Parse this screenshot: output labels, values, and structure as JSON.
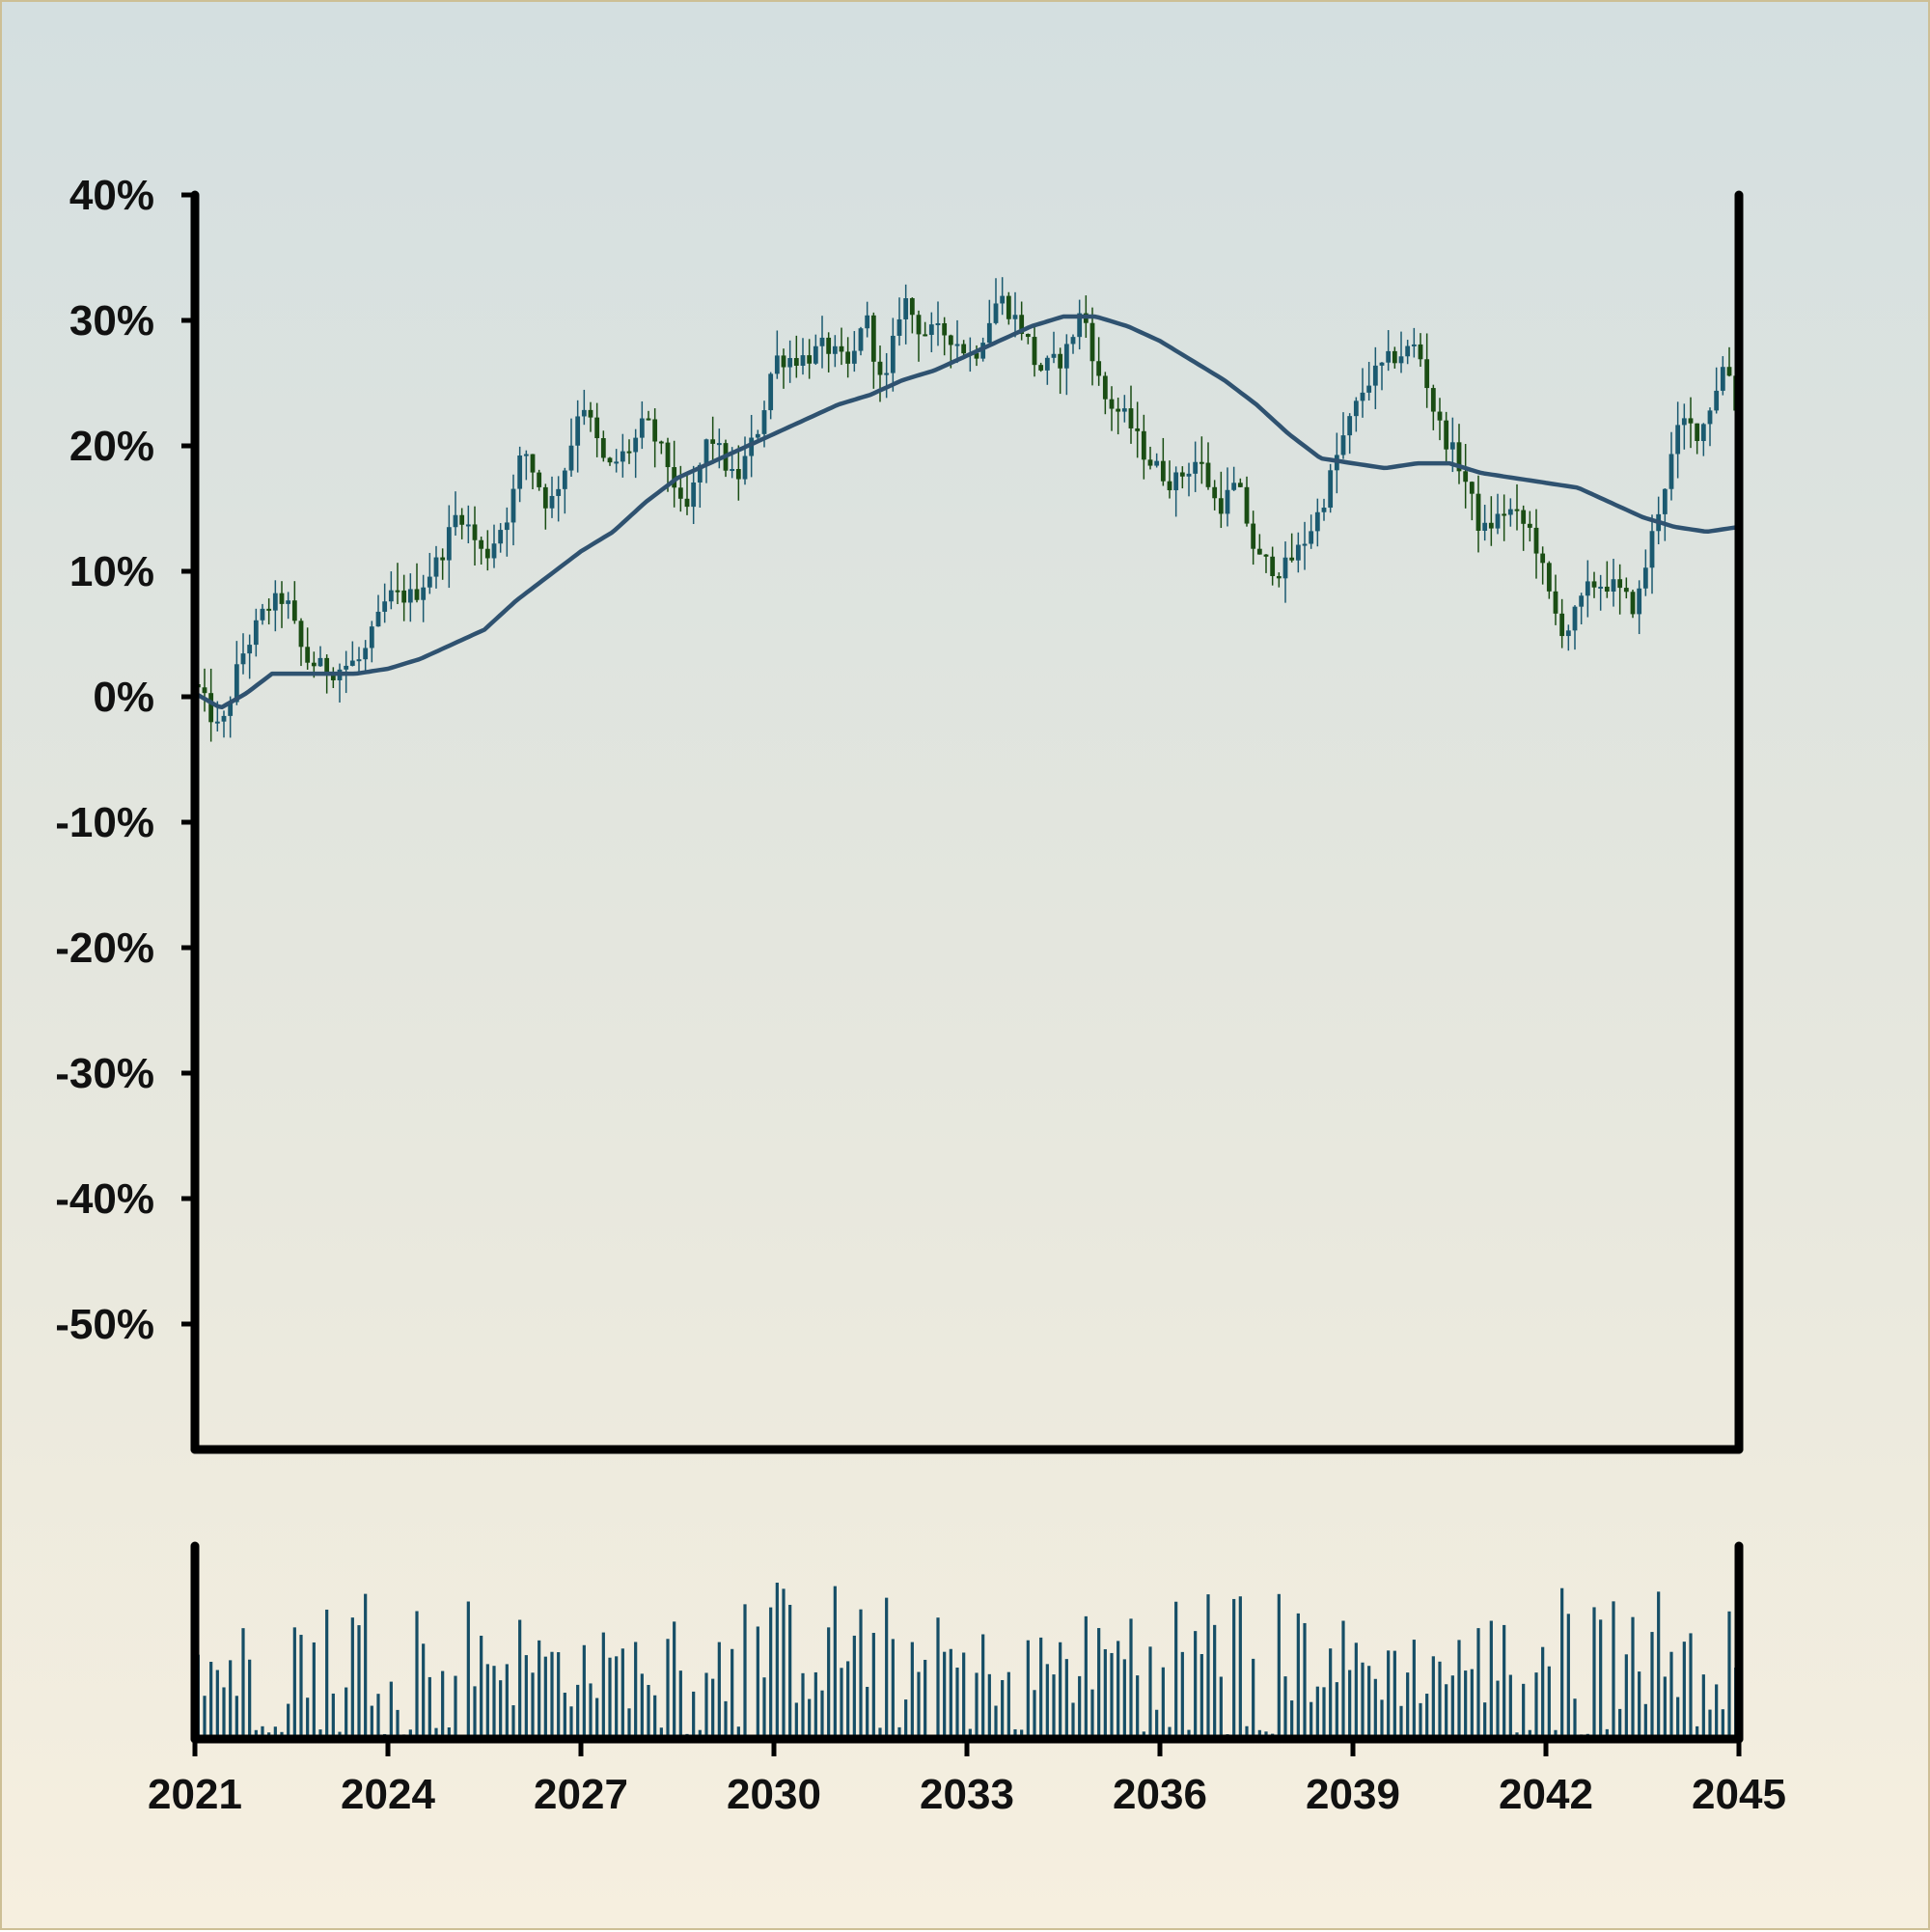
{
  "chart_data": {
    "type": "candlestick",
    "title": "",
    "xlabel": "",
    "ylabel": "",
    "x_ticks": [
      "2021",
      "2024",
      "2027",
      "2030",
      "2033",
      "2036",
      "2039",
      "2042",
      "2045"
    ],
    "x_range": [
      2021,
      2045
    ],
    "y_ticks": [
      "40%",
      "30%",
      "20%",
      "10%",
      "0%",
      "-10%",
      "-20%",
      "-30%",
      "-40%",
      "-50%"
    ],
    "ylim": [
      -60,
      40
    ],
    "grid": false,
    "legend": "none",
    "price_keypoints": [
      [
        2021.0,
        1
      ],
      [
        2021.4,
        -3
      ],
      [
        2021.7,
        3
      ],
      [
        2022.1,
        7
      ],
      [
        2022.4,
        8
      ],
      [
        2022.7,
        3
      ],
      [
        2023.1,
        2
      ],
      [
        2023.6,
        3
      ],
      [
        2024.0,
        8
      ],
      [
        2024.4,
        8
      ],
      [
        2024.8,
        11
      ],
      [
        2025.1,
        15
      ],
      [
        2025.5,
        11
      ],
      [
        2025.9,
        15
      ],
      [
        2026.1,
        20
      ],
      [
        2026.5,
        15
      ],
      [
        2026.8,
        19
      ],
      [
        2027.0,
        24
      ],
      [
        2027.4,
        18
      ],
      [
        2027.8,
        20
      ],
      [
        2028.0,
        22
      ],
      [
        2028.4,
        18
      ],
      [
        2028.6,
        14
      ],
      [
        2029.0,
        21
      ],
      [
        2029.4,
        17
      ],
      [
        2029.8,
        22
      ],
      [
        2030.0,
        27
      ],
      [
        2030.5,
        27
      ],
      [
        2030.8,
        28
      ],
      [
        2031.2,
        26
      ],
      [
        2031.4,
        31
      ],
      [
        2031.7,
        24
      ],
      [
        2032.0,
        32
      ],
      [
        2032.3,
        29
      ],
      [
        2032.7,
        29
      ],
      [
        2033.1,
        27
      ],
      [
        2033.5,
        32
      ],
      [
        2033.9,
        29
      ],
      [
        2034.1,
        26
      ],
      [
        2034.5,
        27
      ],
      [
        2034.8,
        31
      ],
      [
        2035.1,
        24
      ],
      [
        2035.5,
        22
      ],
      [
        2035.8,
        19
      ],
      [
        2036.2,
        17
      ],
      [
        2036.6,
        19
      ],
      [
        2036.9,
        15
      ],
      [
        2037.2,
        17
      ],
      [
        2037.5,
        11
      ],
      [
        2037.9,
        10
      ],
      [
        2038.2,
        12
      ],
      [
        2038.5,
        15
      ],
      [
        2038.8,
        20
      ],
      [
        2039.2,
        25
      ],
      [
        2039.6,
        27
      ],
      [
        2040.0,
        28
      ],
      [
        2040.3,
        22
      ],
      [
        2040.7,
        18
      ],
      [
        2041.0,
        13
      ],
      [
        2041.4,
        15
      ],
      [
        2041.8,
        13
      ],
      [
        2042.1,
        7
      ],
      [
        2042.3,
        5
      ],
      [
        2042.7,
        9
      ],
      [
        2043.0,
        9
      ],
      [
        2043.4,
        7
      ],
      [
        2043.7,
        14
      ],
      [
        2044.1,
        22
      ],
      [
        2044.4,
        21
      ],
      [
        2044.8,
        27
      ],
      [
        2045.0,
        22
      ]
    ],
    "moving_average": [
      [
        2021.0,
        1
      ],
      [
        2021.4,
        -0.5
      ],
      [
        2021.8,
        1
      ],
      [
        2022.2,
        3
      ],
      [
        2022.6,
        3
      ],
      [
        2023.0,
        3
      ],
      [
        2023.5,
        3
      ],
      [
        2024.0,
        3.5
      ],
      [
        2024.5,
        4.5
      ],
      [
        2025.0,
        6
      ],
      [
        2025.5,
        7.5
      ],
      [
        2026.0,
        10.5
      ],
      [
        2026.5,
        13
      ],
      [
        2027.0,
        15.5
      ],
      [
        2027.5,
        17.5
      ],
      [
        2028.0,
        20.5
      ],
      [
        2028.5,
        23
      ],
      [
        2029.0,
        24.5
      ],
      [
        2029.5,
        26
      ],
      [
        2030.0,
        27.5
      ],
      [
        2030.5,
        29
      ],
      [
        2031.0,
        30.5
      ],
      [
        2031.5,
        31.5
      ],
      [
        2032.0,
        33
      ],
      [
        2032.5,
        34
      ],
      [
        2033.0,
        35.5
      ],
      [
        2033.5,
        37
      ],
      [
        2034.0,
        38.5
      ],
      [
        2034.5,
        39.5
      ],
      [
        2035.0,
        39.5
      ],
      [
        2035.5,
        38.5
      ],
      [
        2036.0,
        37
      ],
      [
        2036.5,
        35
      ],
      [
        2037.0,
        33
      ],
      [
        2037.5,
        30.5
      ],
      [
        2038.0,
        27.5
      ],
      [
        2038.5,
        25
      ],
      [
        2039.0,
        24.5
      ],
      [
        2039.5,
        24
      ],
      [
        2040.0,
        24.5
      ],
      [
        2040.5,
        24.5
      ],
      [
        2041.0,
        23.5
      ],
      [
        2041.5,
        23
      ],
      [
        2042.0,
        22.5
      ],
      [
        2042.5,
        22
      ],
      [
        2043.0,
        20.5
      ],
      [
        2043.5,
        19
      ],
      [
        2044.0,
        18
      ],
      [
        2044.5,
        17.5
      ],
      [
        2045.0,
        18
      ]
    ],
    "volume_bars": 240
  },
  "colors": {
    "candle_up": "#1b5a70",
    "candle_down": "#1a4d14",
    "moving_average": "#2f5270",
    "volume": "#164e66",
    "axis": "#000000"
  }
}
